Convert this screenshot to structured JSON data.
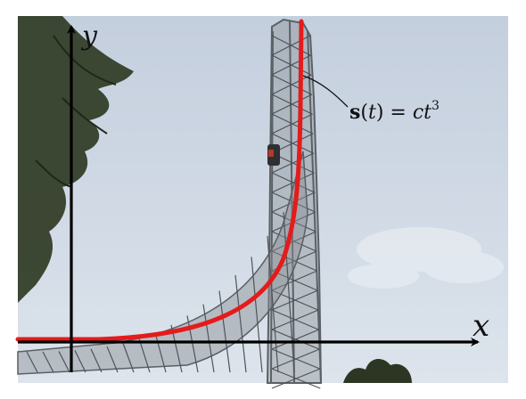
{
  "axes": {
    "x_label": "x",
    "y_label": "y"
  },
  "annotation": {
    "bold_part": "s",
    "open_paren": "(",
    "t_var": "t",
    "rest": ") = ",
    "c_var": "ct",
    "exponent": "3"
  },
  "colors": {
    "sky_top": "#c9d4e2",
    "sky_bottom": "#dfe6ee",
    "curve": "#e51b1b",
    "axis": "#000000",
    "tower": "#5f6468",
    "foliage": "#2f3a24"
  }
}
